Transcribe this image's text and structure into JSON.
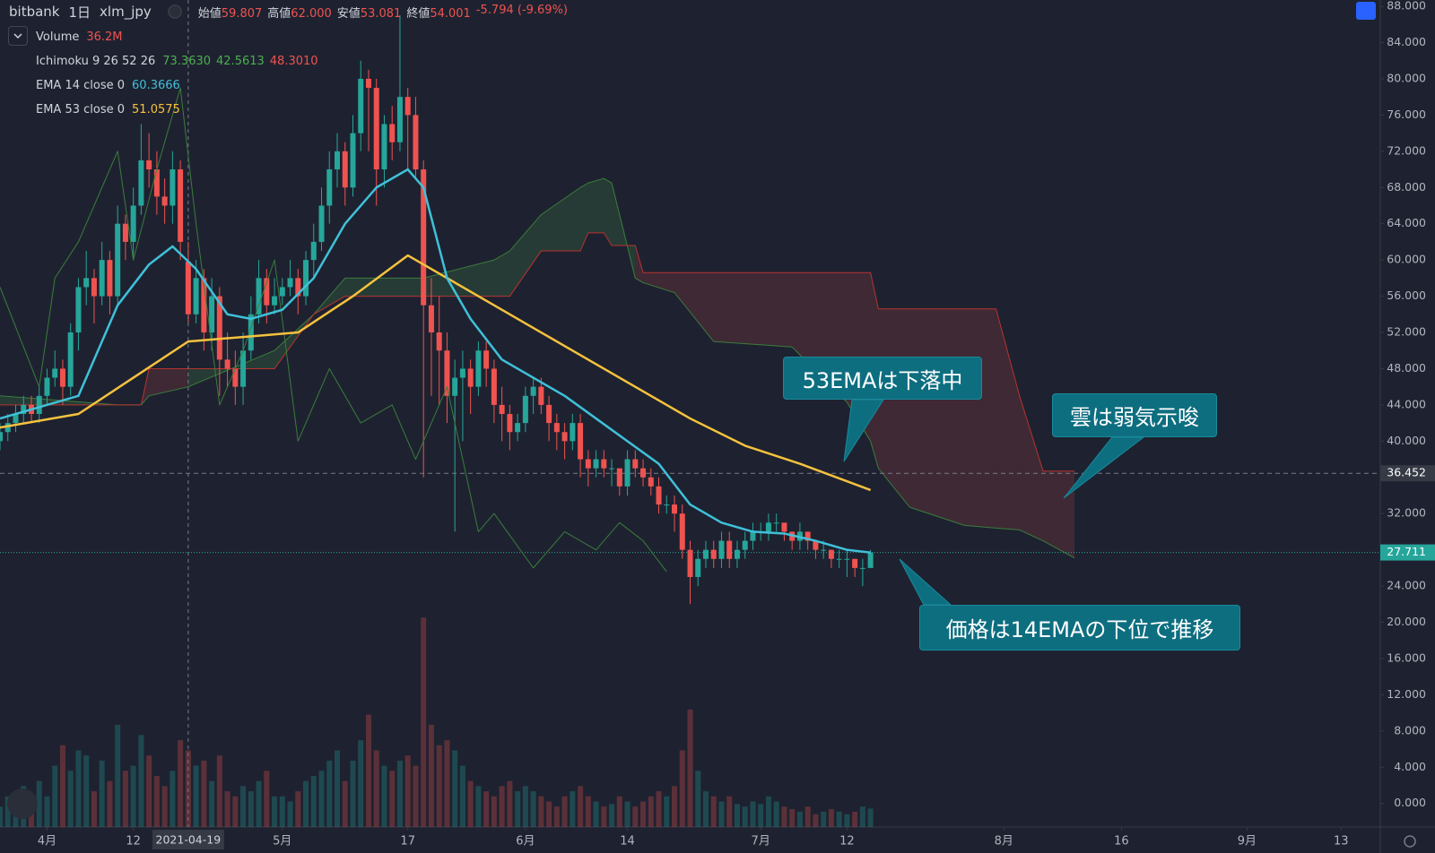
{
  "header": {
    "exchange": "bitbank",
    "interval": "1日",
    "symbol": "xlm_jpy",
    "ohlc": [
      {
        "label": "始値",
        "value": "59.807"
      },
      {
        "label": "高値",
        "value": "62.000"
      },
      {
        "label": "安値",
        "value": "53.081"
      },
      {
        "label": "終値",
        "value": "54.001"
      }
    ],
    "change": "-5.794 (-9.69%)"
  },
  "legend": [
    {
      "name": "Volume",
      "values": [
        "36.2M"
      ],
      "colors": [
        "#ef5350"
      ]
    },
    {
      "name": "Ichimoku 9 26 52 26",
      "values": [
        "73.3630",
        "42.5613",
        "48.3010"
      ],
      "colors": [
        "#4caf50",
        "#4caf50",
        "#ef5350"
      ]
    },
    {
      "name": "EMA 14 close 0",
      "values": [
        "60.3666"
      ],
      "colors": [
        "#3fc1d9"
      ]
    },
    {
      "name": "EMA 53 close 0",
      "values": [
        "51.0575"
      ],
      "colors": [
        "#f6c23e"
      ]
    }
  ],
  "annotations": [
    "53EMAは下落中",
    "雲は弱気示唆",
    "価格は14EMAの下位で推移"
  ],
  "chart_data": {
    "type": "candlestick",
    "xlim": [
      "2021-03-26",
      "2021-09-18"
    ],
    "ylim": [
      -2.6,
      88.7
    ],
    "up_color": "#26a69a",
    "down_color": "#ef5350",
    "yticks": [
      {
        "value": 0,
        "label": "0.000"
      },
      {
        "value": 4,
        "label": "4.000"
      },
      {
        "value": 8,
        "label": "8.000"
      },
      {
        "value": 12,
        "label": "12.000"
      },
      {
        "value": 16,
        "label": "16.000"
      },
      {
        "value": 20,
        "label": "20.000"
      },
      {
        "value": 24,
        "label": "24.000"
      },
      {
        "value": 28,
        "label": "28.000"
      },
      {
        "value": 32,
        "label": "32.000"
      },
      {
        "value": 36,
        "label": "36.000"
      },
      {
        "value": 40,
        "label": "40.000"
      },
      {
        "value": 44,
        "label": "44.000"
      },
      {
        "value": 48,
        "label": "48.000"
      },
      {
        "value": 52,
        "label": "52.000"
      },
      {
        "value": 56,
        "label": "56.000"
      },
      {
        "value": 60,
        "label": "60.000"
      },
      {
        "value": 64,
        "label": "64.000"
      },
      {
        "value": 68,
        "label": "68.000"
      },
      {
        "value": 72,
        "label": "72.000"
      },
      {
        "value": 76,
        "label": "76.000"
      },
      {
        "value": 80,
        "label": "80.000"
      },
      {
        "value": 84,
        "label": "84.000"
      },
      {
        "value": 88,
        "label": "88.000"
      }
    ],
    "xticks": [
      {
        "value": "2021-04-01",
        "label": "4月"
      },
      {
        "value": "2021-04-12",
        "label": "12"
      },
      {
        "value": "2021-05-01",
        "label": "5月"
      },
      {
        "value": "2021-05-17",
        "label": "17"
      },
      {
        "value": "2021-06-01",
        "label": "6月"
      },
      {
        "value": "2021-06-14",
        "label": "14"
      },
      {
        "value": "2021-07-01",
        "label": "7月"
      },
      {
        "value": "2021-07-12",
        "label": "12"
      },
      {
        "value": "2021-08-01",
        "label": "8月"
      },
      {
        "value": "2021-08-16",
        "label": "16"
      },
      {
        "value": "2021-09-01",
        "label": "9月"
      },
      {
        "value": "2021-09-13",
        "label": "13"
      }
    ],
    "crosshair": "2021-04-19",
    "price_lines": [
      {
        "value": 36.452,
        "color": "#787b86",
        "label_bg": "#363a45"
      },
      {
        "value": 27.711,
        "color": "#26a69a",
        "label_bg": "#26a69a"
      }
    ],
    "x": [
      "2021-03-26",
      "2021-03-27",
      "2021-03-28",
      "2021-03-29",
      "2021-03-30",
      "2021-03-31",
      "2021-04-01",
      "2021-04-02",
      "2021-04-03",
      "2021-04-04",
      "2021-04-05",
      "2021-04-06",
      "2021-04-07",
      "2021-04-08",
      "2021-04-09",
      "2021-04-10",
      "2021-04-11",
      "2021-04-12",
      "2021-04-13",
      "2021-04-14",
      "2021-04-15",
      "2021-04-16",
      "2021-04-17",
      "2021-04-18",
      "2021-04-19",
      "2021-04-20",
      "2021-04-21",
      "2021-04-22",
      "2021-04-23",
      "2021-04-24",
      "2021-04-25",
      "2021-04-26",
      "2021-04-27",
      "2021-04-28",
      "2021-04-29",
      "2021-04-30",
      "2021-05-01",
      "2021-05-02",
      "2021-05-03",
      "2021-05-04",
      "2021-05-05",
      "2021-05-06",
      "2021-05-07",
      "2021-05-08",
      "2021-05-09",
      "2021-05-10",
      "2021-05-11",
      "2021-05-12",
      "2021-05-13",
      "2021-05-14",
      "2021-05-15",
      "2021-05-16",
      "2021-05-17",
      "2021-05-18",
      "2021-05-19",
      "2021-05-20",
      "2021-05-21",
      "2021-05-22",
      "2021-05-23",
      "2021-05-24",
      "2021-05-25",
      "2021-05-26",
      "2021-05-27",
      "2021-05-28",
      "2021-05-29",
      "2021-05-30",
      "2021-05-31",
      "2021-06-01",
      "2021-06-02",
      "2021-06-03",
      "2021-06-04",
      "2021-06-05",
      "2021-06-06",
      "2021-06-07",
      "2021-06-08",
      "2021-06-09",
      "2021-06-10",
      "2021-06-11",
      "2021-06-12",
      "2021-06-13",
      "2021-06-14",
      "2021-06-15",
      "2021-06-16",
      "2021-06-17",
      "2021-06-18",
      "2021-06-19",
      "2021-06-20",
      "2021-06-21",
      "2021-06-22",
      "2021-06-23",
      "2021-06-24",
      "2021-06-25",
      "2021-06-26",
      "2021-06-27",
      "2021-06-28",
      "2021-06-29",
      "2021-06-30",
      "2021-07-01",
      "2021-07-02",
      "2021-07-03",
      "2021-07-04",
      "2021-07-05",
      "2021-07-06",
      "2021-07-07",
      "2021-07-08",
      "2021-07-09",
      "2021-07-10",
      "2021-07-11",
      "2021-07-12",
      "2021-07-13",
      "2021-07-14",
      "2021-07-15"
    ],
    "ohlc": [
      [
        40,
        42,
        39,
        41
      ],
      [
        41,
        43,
        40,
        42
      ],
      [
        42,
        44,
        41,
        43
      ],
      [
        43,
        45,
        42,
        44
      ],
      [
        44,
        45,
        42,
        43
      ],
      [
        43,
        46,
        42,
        45
      ],
      [
        45,
        48,
        44,
        47
      ],
      [
        47,
        50,
        46,
        48
      ],
      [
        48,
        49,
        44,
        46
      ],
      [
        46,
        53,
        45,
        52
      ],
      [
        52,
        58,
        50,
        57
      ],
      [
        57,
        61,
        55,
        58
      ],
      [
        58,
        59,
        53,
        56
      ],
      [
        56,
        62,
        55,
        60
      ],
      [
        60,
        61,
        54,
        56
      ],
      [
        56,
        66,
        55,
        64
      ],
      [
        64,
        65,
        60,
        62
      ],
      [
        62,
        68,
        60,
        66
      ],
      [
        66,
        75,
        65,
        71
      ],
      [
        71,
        74,
        68,
        70
      ],
      [
        70,
        72,
        65,
        67
      ],
      [
        67,
        69,
        64,
        66
      ],
      [
        66,
        72,
        64,
        70
      ],
      [
        70,
        71,
        60,
        62
      ],
      [
        59.807,
        62.0,
        53.081,
        54.001
      ],
      [
        54,
        60,
        53,
        58
      ],
      [
        58,
        59,
        50,
        52
      ],
      [
        52,
        58,
        50,
        56
      ],
      [
        56,
        57,
        45,
        49
      ],
      [
        49,
        52,
        46,
        48
      ],
      [
        48,
        50,
        44,
        46
      ],
      [
        46,
        52,
        44,
        50
      ],
      [
        50,
        56,
        49,
        54
      ],
      [
        54,
        60,
        53,
        58
      ],
      [
        58,
        59,
        53,
        55
      ],
      [
        55,
        58,
        54,
        56
      ],
      [
        56,
        58,
        55,
        57
      ],
      [
        57,
        60,
        56,
        58
      ],
      [
        58,
        59,
        54,
        56
      ],
      [
        56,
        61,
        55,
        60
      ],
      [
        60,
        64,
        58,
        62
      ],
      [
        62,
        68,
        61,
        66
      ],
      [
        66,
        72,
        64,
        70
      ],
      [
        70,
        74,
        68,
        72
      ],
      [
        72,
        73,
        66,
        68
      ],
      [
        68,
        76,
        67,
        74
      ],
      [
        74,
        82,
        72,
        80
      ],
      [
        80,
        81,
        72,
        79
      ],
      [
        79,
        80,
        66,
        70
      ],
      [
        70,
        76,
        68,
        75
      ],
      [
        75,
        77,
        71,
        73
      ],
      [
        73,
        87,
        72,
        78
      ],
      [
        78,
        79,
        70,
        76
      ],
      [
        76,
        78,
        69,
        70
      ],
      [
        70,
        71,
        36,
        55
      ],
      [
        55,
        58,
        45,
        52
      ],
      [
        52,
        56,
        44,
        50
      ],
      [
        50,
        52,
        42,
        45
      ],
      [
        45,
        49,
        30,
        47
      ],
      [
        47,
        50,
        40,
        48
      ],
      [
        48,
        49,
        43,
        46
      ],
      [
        46,
        51,
        45,
        50
      ],
      [
        50,
        51,
        46,
        48
      ],
      [
        48,
        49,
        42,
        44
      ],
      [
        44,
        46,
        40,
        43
      ],
      [
        43,
        44,
        39,
        41
      ],
      [
        41,
        43,
        40,
        42
      ],
      [
        42,
        46,
        41,
        45
      ],
      [
        45,
        47,
        43,
        46
      ],
      [
        46,
        47,
        43,
        44
      ],
      [
        44,
        45,
        40,
        42
      ],
      [
        42,
        43,
        39,
        41
      ],
      [
        41,
        42,
        38,
        40
      ],
      [
        40,
        43,
        39,
        42
      ],
      [
        42,
        43,
        36,
        38
      ],
      [
        38,
        39,
        35,
        37
      ],
      [
        37,
        39,
        36,
        38
      ],
      [
        38,
        39,
        36,
        37
      ],
      [
        37,
        38,
        35,
        37
      ],
      [
        37,
        37,
        34,
        35
      ],
      [
        35,
        39,
        34,
        38
      ],
      [
        38,
        39,
        36,
        37
      ],
      [
        37,
        38,
        35,
        36
      ],
      [
        36,
        37,
        34,
        35
      ],
      [
        35,
        36,
        32,
        33
      ],
      [
        33,
        34,
        32,
        33
      ],
      [
        33,
        34,
        30,
        32
      ],
      [
        32,
        33,
        27,
        28
      ],
      [
        28,
        29,
        22,
        25
      ],
      [
        25,
        28,
        24,
        27
      ],
      [
        27,
        29,
        26,
        28
      ],
      [
        28,
        29,
        26,
        27
      ],
      [
        27,
        30,
        26,
        29
      ],
      [
        29,
        30,
        26,
        27
      ],
      [
        27,
        29,
        26,
        28
      ],
      [
        28,
        30,
        27,
        29
      ],
      [
        29,
        31,
        28,
        30
      ],
      [
        30,
        31,
        29,
        30
      ],
      [
        30,
        32,
        29,
        31
      ],
      [
        31,
        32,
        30,
        31
      ],
      [
        31,
        31,
        29,
        30
      ],
      [
        30,
        30,
        28,
        29
      ],
      [
        29,
        31,
        28,
        30
      ],
      [
        30,
        30,
        28,
        29
      ],
      [
        29,
        29,
        27,
        28
      ],
      [
        28,
        29,
        27,
        28
      ],
      [
        28,
        28,
        26,
        27
      ],
      [
        27,
        28,
        26,
        27
      ],
      [
        27,
        28,
        25,
        27
      ],
      [
        27,
        27,
        25,
        26
      ],
      [
        26,
        27,
        24,
        26
      ],
      [
        26,
        28,
        26,
        27.711
      ]
    ],
    "volume": [
      40,
      60,
      30,
      80,
      50,
      90,
      60,
      120,
      160,
      110,
      150,
      140,
      70,
      130,
      90,
      200,
      110,
      120,
      180,
      140,
      100,
      80,
      110,
      170,
      150,
      120,
      130,
      90,
      140,
      70,
      60,
      80,
      70,
      90,
      110,
      60,
      60,
      50,
      70,
      90,
      100,
      110,
      130,
      150,
      90,
      130,
      170,
      220,
      150,
      120,
      110,
      130,
      140,
      120,
      410,
      200,
      160,
      170,
      150,
      120,
      90,
      80,
      70,
      60,
      80,
      90,
      70,
      80,
      70,
      60,
      50,
      40,
      60,
      70,
      80,
      60,
      50,
      40,
      45,
      60,
      50,
      40,
      50,
      60,
      70,
      60,
      80,
      150,
      230,
      110,
      70,
      60,
      50,
      60,
      45,
      40,
      50,
      45,
      60,
      50,
      40,
      35,
      30,
      40,
      25,
      30,
      35,
      30,
      25,
      30,
      40,
      36.2
    ],
    "cloud": {
      "up_color": "rgba(76,175,80,0.18)",
      "down_color": "rgba(239,83,80,0.16)",
      "span_a_color": "#3a7d3c",
      "span_b_color": "#b8322f",
      "x": [
        "2021-03-26",
        "2021-04-10",
        "2021-04-13",
        "2021-04-14",
        "2021-04-19",
        "2021-04-30",
        "2021-05-05",
        "2021-05-09",
        "2021-05-19",
        "2021-05-28",
        "2021-05-30",
        "2021-06-03",
        "2021-06-08",
        "2021-06-09",
        "2021-06-11",
        "2021-06-12",
        "2021-06-15",
        "2021-06-16",
        "2021-06-20",
        "2021-06-25",
        "2021-07-05",
        "2021-07-12",
        "2021-07-15",
        "2021-07-16",
        "2021-07-20",
        "2021-07-27",
        "2021-07-31",
        "2021-08-03",
        "2021-08-06",
        "2021-08-10"
      ],
      "span_a": [
        45,
        44,
        44,
        45,
        46,
        50,
        54,
        58,
        58,
        60,
        61,
        65,
        68,
        68.5,
        69,
        68.5,
        58,
        57.5,
        56.4,
        51,
        50.4,
        44.3,
        40,
        37,
        32.7,
        30.7,
        30.4,
        30.2,
        29,
        27.1
      ],
      "span_b": [
        44,
        44,
        44,
        48,
        48,
        48,
        54,
        56,
        56,
        56,
        56,
        61,
        61,
        63,
        63,
        61.6,
        61.6,
        58.6,
        58.6,
        58.6,
        58.6,
        58.6,
        58.6,
        54.6,
        54.6,
        54.6,
        54.6,
        45,
        36.7,
        36.7
      ]
    },
    "lines": [
      {
        "color": "#3a7d3c",
        "width": 1,
        "x": [
          "2021-03-26",
          "2021-03-31",
          "2021-04-02",
          "2021-04-05",
          "2021-04-10",
          "2021-04-12",
          "2021-04-15",
          "2021-04-18",
          "2021-04-20",
          "2021-04-23",
          "2021-04-26",
          "2021-04-30",
          "2021-05-03",
          "2021-05-07",
          "2021-05-11",
          "2021-05-15",
          "2021-05-18",
          "2021-05-22",
          "2021-05-26",
          "2021-05-28",
          "2021-06-02",
          "2021-06-06",
          "2021-06-10",
          "2021-06-13",
          "2021-06-16",
          "2021-06-19"
        ],
        "values": [
          57,
          46,
          58,
          62,
          72,
          60,
          70,
          79,
          64,
          44,
          50,
          60,
          40,
          48,
          42,
          44,
          38,
          46,
          30,
          32,
          26,
          30,
          28,
          31,
          29,
          25.6
        ]
      },
      {
        "color": "#f6c23e",
        "width": 2.5,
        "x": [
          "2021-03-26",
          "2021-04-05",
          "2021-04-12",
          "2021-04-19",
          "2021-04-26",
          "2021-05-03",
          "2021-05-10",
          "2021-05-17",
          "2021-05-24",
          "2021-06-01",
          "2021-06-08",
          "2021-06-15",
          "2021-06-22",
          "2021-06-29",
          "2021-07-06",
          "2021-07-15"
        ],
        "values": [
          41.5,
          43,
          47,
          51,
          51.5,
          52,
          56,
          60.5,
          57,
          53,
          49.5,
          46,
          42.5,
          39.5,
          37.5,
          34.6
        ]
      },
      {
        "color": "#3fc1d9",
        "width": 2.5,
        "x": [
          "2021-03-26",
          "2021-04-05",
          "2021-04-10",
          "2021-04-14",
          "2021-04-17",
          "2021-04-20",
          "2021-04-24",
          "2021-04-27",
          "2021-05-01",
          "2021-05-05",
          "2021-05-09",
          "2021-05-13",
          "2021-05-17",
          "2021-05-19",
          "2021-05-22",
          "2021-05-25",
          "2021-05-29",
          "2021-06-02",
          "2021-06-06",
          "2021-06-10",
          "2021-06-14",
          "2021-06-18",
          "2021-06-22",
          "2021-06-26",
          "2021-06-30",
          "2021-07-04",
          "2021-07-08",
          "2021-07-12",
          "2021-07-15"
        ],
        "values": [
          42.5,
          45,
          55,
          59.5,
          61.5,
          59,
          54,
          53.5,
          54.5,
          58,
          64,
          68,
          70,
          68,
          58,
          53.5,
          49,
          47,
          45,
          42.5,
          40,
          37.5,
          33,
          31,
          30,
          29.8,
          29,
          28,
          27.7
        ]
      }
    ]
  }
}
